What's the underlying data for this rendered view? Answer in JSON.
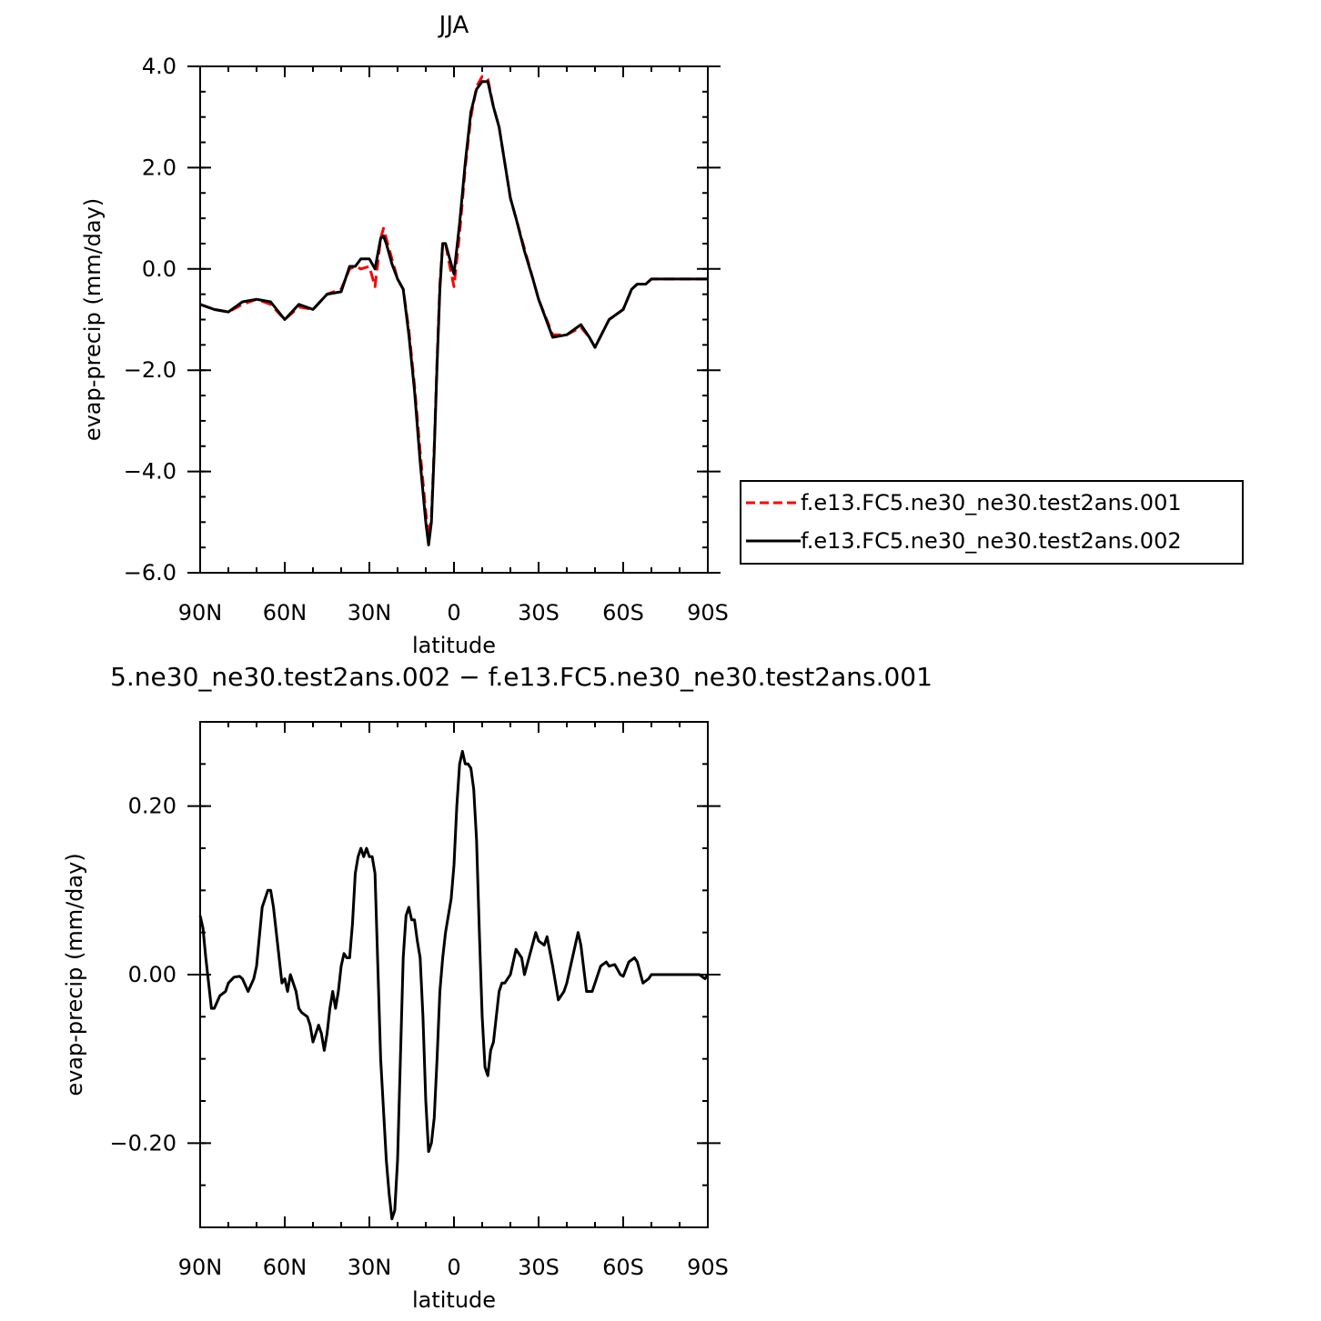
{
  "chart_data": [
    {
      "type": "line",
      "title": "JJA",
      "xlabel": "latitude",
      "ylabel": "evap-precip (mm/day)",
      "xlim": [
        -90,
        90
      ],
      "ylim": [
        -6,
        4
      ],
      "xticks": [
        -90,
        -60,
        -30,
        0,
        30,
        60,
        90
      ],
      "xtick_labels": [
        "90N",
        "60N",
        "30N",
        "0",
        "30S",
        "60S",
        "90S"
      ],
      "yticks": [
        -6,
        -4,
        -2,
        0,
        2,
        4
      ],
      "ytick_labels": [
        "−6.0",
        "−4.0",
        "−2.0",
        "0.0",
        "2.0",
        "4.0"
      ],
      "legend_position": "right",
      "grid": false,
      "series": [
        {
          "name": "f.e13.FC5.ne30_ne30.test2ans.001",
          "color": "#ff0000",
          "dash": "dashed",
          "x": [
            -90,
            -85,
            -80,
            -75,
            -70,
            -65,
            -60,
            -55,
            -50,
            -45,
            -40,
            -37,
            -35,
            -33,
            -30,
            -28,
            -26,
            -25,
            -24,
            -22,
            -20,
            -18,
            -16,
            -14,
            -12,
            -10,
            -9,
            -8,
            -7,
            -6,
            -5,
            -4,
            -3,
            -2,
            0,
            2,
            4,
            6,
            8,
            10,
            12,
            14,
            16,
            18,
            20,
            22,
            25,
            28,
            30,
            35,
            40,
            45,
            48,
            50,
            55,
            60,
            63,
            65,
            68,
            70,
            75,
            80,
            85,
            90
          ],
          "y": [
            -0.7,
            -0.8,
            -0.85,
            -0.7,
            -0.6,
            -0.7,
            -1.0,
            -0.75,
            -0.8,
            -0.5,
            -0.4,
            0.0,
            0.05,
            0.0,
            0.05,
            -0.35,
            0.6,
            0.8,
            0.6,
            0.2,
            -0.2,
            -0.4,
            -1.2,
            -2.3,
            -3.6,
            -4.8,
            -5.3,
            -4.9,
            -3.5,
            -1.8,
            -0.3,
            0.5,
            0.5,
            0.2,
            -0.35,
            0.7,
            2.0,
            3.0,
            3.6,
            3.8,
            3.75,
            3.2,
            2.8,
            2.1,
            1.4,
            1.0,
            0.4,
            -0.2,
            -0.6,
            -1.3,
            -1.3,
            -1.15,
            -1.35,
            -1.55,
            -1.0,
            -0.8,
            -0.4,
            -0.3,
            -0.3,
            -0.2,
            -0.2,
            -0.2,
            -0.2,
            -0.2
          ]
        },
        {
          "name": "f.e13.FC5.ne30_ne30.test2ans.002",
          "color": "#000000",
          "dash": "solid",
          "x": [
            -90,
            -85,
            -80,
            -75,
            -70,
            -65,
            -60,
            -55,
            -50,
            -45,
            -40,
            -37,
            -35,
            -33,
            -30,
            -28,
            -26,
            -25,
            -24,
            -22,
            -20,
            -18,
            -16,
            -14,
            -12,
            -10,
            -9,
            -8,
            -7,
            -6,
            -5,
            -4,
            -3,
            -2,
            0,
            2,
            4,
            6,
            8,
            10,
            12,
            14,
            16,
            18,
            20,
            22,
            25,
            28,
            30,
            35,
            40,
            45,
            48,
            50,
            55,
            60,
            63,
            65,
            68,
            70,
            75,
            80,
            85,
            90
          ],
          "y": [
            -0.7,
            -0.8,
            -0.85,
            -0.65,
            -0.6,
            -0.65,
            -1.0,
            -0.7,
            -0.8,
            -0.5,
            -0.45,
            0.05,
            0.05,
            0.2,
            0.2,
            0.0,
            0.6,
            0.65,
            0.5,
            0.1,
            -0.2,
            -0.4,
            -1.3,
            -2.4,
            -3.8,
            -5.0,
            -5.45,
            -5.0,
            -3.6,
            -1.9,
            -0.4,
            0.5,
            0.5,
            0.3,
            -0.1,
            0.9,
            2.1,
            3.1,
            3.55,
            3.7,
            3.7,
            3.2,
            2.8,
            2.1,
            1.4,
            1.0,
            0.35,
            -0.2,
            -0.6,
            -1.35,
            -1.3,
            -1.1,
            -1.35,
            -1.55,
            -1.0,
            -0.8,
            -0.4,
            -0.3,
            -0.3,
            -0.2,
            -0.2,
            -0.2,
            -0.2,
            -0.2
          ]
        }
      ]
    },
    {
      "type": "line",
      "title": "5.ne30_ne30.test2ans.002 − f.e13.FC5.ne30_ne30.test2ans.001",
      "xlabel": "latitude",
      "ylabel": "evap-precip (mm/day)",
      "xlim": [
        -90,
        90
      ],
      "ylim": [
        -0.3,
        0.3
      ],
      "xticks": [
        -90,
        -60,
        -30,
        0,
        30,
        60,
        90
      ],
      "xtick_labels": [
        "90N",
        "60N",
        "30N",
        "0",
        "30S",
        "60S",
        "90S"
      ],
      "yticks": [
        -0.2,
        0.0,
        0.2
      ],
      "ytick_labels": [
        "−0.20",
        "0.00",
        "0.20"
      ],
      "grid": false,
      "series": [
        {
          "color": "#000000",
          "dash": "solid",
          "x": [
            -90,
            -89,
            -88,
            -86,
            -85,
            -83,
            -81,
            -80,
            -78,
            -76,
            -75,
            -73,
            -71,
            -70,
            -68,
            -66,
            -65,
            -64,
            -63,
            -61,
            -60,
            -59,
            -58,
            -56,
            -55,
            -54,
            -52,
            -51,
            -50,
            -49,
            -48,
            -47,
            -46,
            -45,
            -44,
            -43,
            -42,
            -41,
            -40,
            -39,
            -38,
            -37,
            -36,
            -35,
            -34,
            -33,
            -32,
            -31,
            -30,
            -29,
            -28,
            -27,
            -26,
            -25,
            -24,
            -23,
            -22,
            -21,
            -20,
            -19,
            -18,
            -17,
            -16,
            -15,
            -14,
            -13,
            -12,
            -11,
            -10,
            -9,
            -8,
            -7,
            -6,
            -5,
            -4,
            -3,
            -2,
            -1,
            0,
            1,
            2,
            3,
            4,
            5,
            6,
            7,
            8,
            9,
            10,
            11,
            12,
            13,
            14,
            15,
            16,
            17,
            18,
            19,
            20,
            22,
            24,
            25,
            27,
            29,
            30,
            32,
            33,
            35,
            37,
            39,
            40,
            42,
            44,
            45,
            47,
            49,
            50,
            52,
            54,
            55,
            57,
            59,
            60,
            62,
            64,
            65,
            67,
            69,
            70,
            72,
            74,
            75,
            77,
            79,
            80,
            82,
            84,
            85,
            87,
            89,
            90
          ],
          "y": [
            0.07,
            0.055,
            0.02,
            -0.04,
            -0.04,
            -0.025,
            -0.02,
            -0.01,
            -0.003,
            -0.002,
            -0.005,
            -0.02,
            -0.005,
            0.01,
            0.08,
            0.1,
            0.1,
            0.08,
            0.05,
            -0.01,
            -0.005,
            -0.02,
            0.0,
            -0.02,
            -0.04,
            -0.045,
            -0.05,
            -0.06,
            -0.08,
            -0.07,
            -0.06,
            -0.07,
            -0.09,
            -0.07,
            -0.04,
            -0.02,
            -0.04,
            -0.02,
            0.01,
            0.025,
            0.02,
            0.02,
            0.06,
            0.12,
            0.14,
            0.15,
            0.14,
            0.15,
            0.14,
            0.14,
            0.12,
            0.01,
            -0.1,
            -0.16,
            -0.22,
            -0.26,
            -0.29,
            -0.28,
            -0.22,
            -0.1,
            0.02,
            0.07,
            0.08,
            0.065,
            0.065,
            0.04,
            0.02,
            -0.05,
            -0.15,
            -0.21,
            -0.2,
            -0.17,
            -0.1,
            -0.02,
            0.02,
            0.05,
            0.07,
            0.09,
            0.13,
            0.2,
            0.25,
            0.265,
            0.25,
            0.25,
            0.245,
            0.22,
            0.16,
            0.05,
            -0.05,
            -0.11,
            -0.12,
            -0.09,
            -0.08,
            -0.05,
            -0.02,
            -0.01,
            -0.01,
            -0.005,
            0.0,
            0.03,
            0.02,
            0.0,
            0.025,
            0.05,
            0.04,
            0.035,
            0.045,
            0.01,
            -0.03,
            -0.02,
            -0.01,
            0.02,
            0.05,
            0.035,
            -0.02,
            -0.02,
            -0.01,
            0.01,
            0.015,
            0.01,
            0.012,
            0.0,
            -0.002,
            0.015,
            0.02,
            0.015,
            -0.01,
            -0.005,
            0.0,
            0.0,
            0.0,
            0.0,
            0.0,
            0.0,
            0.0,
            0.0,
            0.0,
            0.0,
            0.0,
            -0.005,
            0.0
          ]
        }
      ]
    }
  ]
}
